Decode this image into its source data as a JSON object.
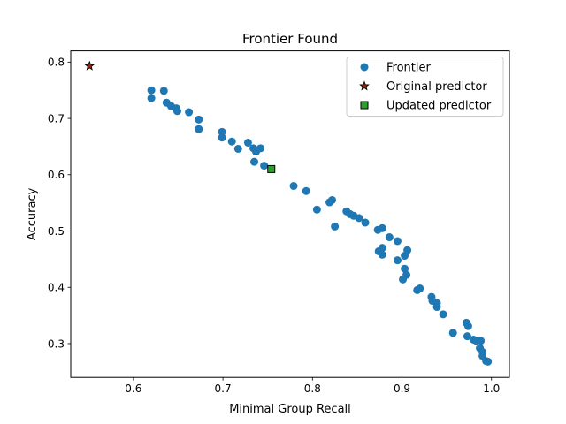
{
  "chart_data": {
    "type": "scatter",
    "title": "Frontier Found",
    "xlabel": "Minimal Group Recall",
    "ylabel": "Accuracy",
    "xlim": [
      0.53,
      1.02
    ],
    "ylim": [
      0.24,
      0.82
    ],
    "xticks": [
      0.6,
      0.7,
      0.8,
      0.9,
      1.0
    ],
    "xtick_labels": [
      "0.6",
      "0.7",
      "0.8",
      "0.9",
      "1.0"
    ],
    "yticks": [
      0.3,
      0.4,
      0.5,
      0.6,
      0.7,
      0.8
    ],
    "ytick_labels": [
      "0.3",
      "0.4",
      "0.5",
      "0.6",
      "0.7",
      "0.8"
    ],
    "grid": false,
    "legend_position": "top-right",
    "series": [
      {
        "name": "Frontier",
        "marker": "circle",
        "color": "#1f77b4",
        "points": [
          [
            0.62,
            0.75
          ],
          [
            0.62,
            0.736
          ],
          [
            0.634,
            0.749
          ],
          [
            0.637,
            0.728
          ],
          [
            0.642,
            0.722
          ],
          [
            0.648,
            0.718
          ],
          [
            0.649,
            0.713
          ],
          [
            0.662,
            0.711
          ],
          [
            0.673,
            0.698
          ],
          [
            0.673,
            0.681
          ],
          [
            0.699,
            0.676
          ],
          [
            0.699,
            0.666
          ],
          [
            0.71,
            0.659
          ],
          [
            0.717,
            0.646
          ],
          [
            0.728,
            0.657
          ],
          [
            0.734,
            0.647
          ],
          [
            0.737,
            0.641
          ],
          [
            0.742,
            0.647
          ],
          [
            0.735,
            0.623
          ],
          [
            0.746,
            0.616
          ],
          [
            0.779,
            0.58
          ],
          [
            0.793,
            0.571
          ],
          [
            0.805,
            0.538
          ],
          [
            0.819,
            0.551
          ],
          [
            0.822,
            0.555
          ],
          [
            0.825,
            0.508
          ],
          [
            0.838,
            0.535
          ],
          [
            0.842,
            0.53
          ],
          [
            0.846,
            0.527
          ],
          [
            0.852,
            0.523
          ],
          [
            0.859,
            0.515
          ],
          [
            0.873,
            0.502
          ],
          [
            0.878,
            0.505
          ],
          [
            0.886,
            0.489
          ],
          [
            0.895,
            0.482
          ],
          [
            0.874,
            0.464
          ],
          [
            0.878,
            0.47
          ],
          [
            0.878,
            0.458
          ],
          [
            0.906,
            0.466
          ],
          [
            0.903,
            0.456
          ],
          [
            0.895,
            0.448
          ],
          [
            0.903,
            0.433
          ],
          [
            0.905,
            0.422
          ],
          [
            0.901,
            0.414
          ],
          [
            0.917,
            0.395
          ],
          [
            0.92,
            0.398
          ],
          [
            0.933,
            0.383
          ],
          [
            0.934,
            0.376
          ],
          [
            0.939,
            0.372
          ],
          [
            0.939,
            0.365
          ],
          [
            0.946,
            0.352
          ],
          [
            0.957,
            0.319
          ],
          [
            0.972,
            0.337
          ],
          [
            0.974,
            0.331
          ],
          [
            0.973,
            0.313
          ],
          [
            0.98,
            0.307
          ],
          [
            0.983,
            0.305
          ],
          [
            0.988,
            0.305
          ],
          [
            0.987,
            0.292
          ],
          [
            0.99,
            0.285
          ],
          [
            0.99,
            0.278
          ],
          [
            0.994,
            0.269
          ],
          [
            0.996,
            0.268
          ]
        ]
      },
      {
        "name": "Original predictor",
        "marker": "star",
        "color": "#8c2a0e",
        "points": [
          [
            0.551,
            0.793
          ]
        ]
      },
      {
        "name": "Updated predictor",
        "marker": "square",
        "color": "#2ca02c",
        "points": [
          [
            0.754,
            0.61
          ]
        ]
      }
    ]
  }
}
